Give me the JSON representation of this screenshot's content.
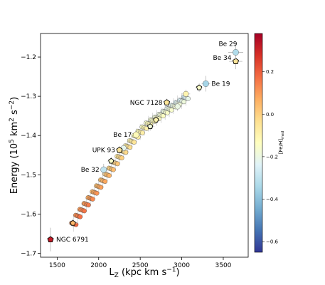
{
  "chart_data": {
    "type": "scatter",
    "xlabel": "L",
    "xlabel_sub": "Z",
    "xlabel_unit": "(kpc km s",
    "xlabel_exp": "−1",
    "xlabel_close": ")",
    "ylabel_main": "Energy (10",
    "ylabel_exp1": "5",
    "ylabel_mid": " km",
    "ylabel_exp2": "2",
    "ylabel_s": " s",
    "ylabel_exp3": "−2",
    "ylabel_close": ")",
    "xlim": [
      1300,
      3800
    ],
    "ylim": [
      -1.71,
      -1.14
    ],
    "xticks": [
      {
        "value": 1500,
        "label": "1500"
      },
      {
        "value": 2000,
        "label": "2000"
      },
      {
        "value": 2500,
        "label": "2500"
      },
      {
        "value": 3000,
        "label": "3000"
      },
      {
        "value": 3500,
        "label": "3500"
      }
    ],
    "yticks": [
      {
        "value": -1.2,
        "label": "−1.2"
      },
      {
        "value": -1.3,
        "label": "−1.3"
      },
      {
        "value": -1.4,
        "label": "−1.4"
      },
      {
        "value": -1.5,
        "label": "−1.5"
      },
      {
        "value": -1.6,
        "label": "−1.6"
      },
      {
        "value": -1.7,
        "label": "−1.7"
      }
    ],
    "colorbar": {
      "label_main": "[Fe/H]",
      "label_sub": "med",
      "range": [
        -0.65,
        0.38
      ],
      "colors": [
        "#313695",
        "#4575b4",
        "#74add1",
        "#abd9e9",
        "#e0f3f8",
        "#ffffbf",
        "#fee090",
        "#fdae61",
        "#f46d43",
        "#d73027",
        "#a50026"
      ],
      "ticks": [
        {
          "value": 0.2,
          "label": "0.2"
        },
        {
          "value": 0.0,
          "label": "0.0"
        },
        {
          "value": -0.2,
          "label": "−0.2"
        },
        {
          "value": -0.4,
          "label": "−0.4"
        },
        {
          "value": -0.6,
          "label": "−0.6"
        }
      ]
    },
    "clusters": [
      {
        "name": "NGC 6791",
        "x": 1420,
        "y": -1.665,
        "feh": 0.32,
        "marker": "pentagon",
        "xerr": 20,
        "yerr": 0.03
      },
      {
        "name": "Be 32",
        "x": 2060,
        "y": -1.487,
        "feh": -0.3,
        "marker": "circle",
        "xerr": 20,
        "yerr": 0.015
      },
      {
        "name": "UPK 93",
        "x": 2250,
        "y": -1.437,
        "feh": -0.05,
        "marker": "pentagon",
        "xerr": 30,
        "yerr": 0.01
      },
      {
        "name": "Be 17",
        "x": 2450,
        "y": -1.398,
        "feh": -0.12,
        "marker": "circle",
        "xerr": 20,
        "yerr": 0.01
      },
      {
        "name": "NGC 7128",
        "x": 2820,
        "y": -1.316,
        "feh": -0.05,
        "marker": "pentagon",
        "xerr": 30,
        "yerr": 0.01
      },
      {
        "name": "Be 19",
        "x": 3290,
        "y": -1.268,
        "feh": -0.35,
        "marker": "circle",
        "xerr": 50,
        "yerr": 0.02
      },
      {
        "name": "Be 34",
        "x": 3650,
        "y": -1.211,
        "feh": -0.05,
        "marker": "pentagon",
        "xerr": 80,
        "yerr": 0.02
      },
      {
        "name": "Be 29",
        "x": 3650,
        "y": -1.188,
        "feh": -0.33,
        "marker": "circle",
        "xerr": 90,
        "yerr": 0.02
      }
    ],
    "extra_highlighted": [
      {
        "x": 1690,
        "y": -1.623,
        "feh": 0.05,
        "marker": "pentagon"
      },
      {
        "x": 3050,
        "y": -1.294,
        "feh": -0.1,
        "marker": "circle"
      },
      {
        "x": 3210,
        "y": -1.278,
        "feh": -0.15,
        "marker": "pentagon"
      },
      {
        "x": 2950,
        "y": -1.326,
        "feh": -0.2,
        "marker": "circle"
      },
      {
        "x": 2690,
        "y": -1.36,
        "feh": -0.1,
        "marker": "pentagon"
      },
      {
        "x": 2620,
        "y": -1.377,
        "feh": -0.18,
        "marker": "pentagon"
      },
      {
        "x": 2300,
        "y": -1.432,
        "feh": -0.22,
        "marker": "circle"
      },
      {
        "x": 2150,
        "y": -1.465,
        "feh": -0.15,
        "marker": "pentagon"
      }
    ],
    "main_sequence": {
      "points": [
        [
          1700,
          -1.625
        ],
        [
          1750,
          -1.605
        ],
        [
          1800,
          -1.59
        ],
        [
          1850,
          -1.575
        ],
        [
          1900,
          -1.56
        ],
        [
          1950,
          -1.545
        ],
        [
          2000,
          -1.53
        ],
        [
          2050,
          -1.515
        ],
        [
          2100,
          -1.5
        ],
        [
          2150,
          -1.485
        ],
        [
          2200,
          -1.47
        ],
        [
          2250,
          -1.455
        ],
        [
          2300,
          -1.441
        ],
        [
          2350,
          -1.428
        ],
        [
          2400,
          -1.415
        ],
        [
          2450,
          -1.402
        ],
        [
          2500,
          -1.391
        ],
        [
          2550,
          -1.38
        ],
        [
          2600,
          -1.37
        ],
        [
          2650,
          -1.362
        ],
        [
          2700,
          -1.355
        ],
        [
          2750,
          -1.348
        ],
        [
          2800,
          -1.34
        ],
        [
          2850,
          -1.333
        ],
        [
          2900,
          -1.325
        ],
        [
          2950,
          -1.318
        ],
        [
          3000,
          -1.312
        ],
        [
          3050,
          -1.304
        ]
      ],
      "feh": [
        0.15,
        0.14,
        0.13,
        0.12,
        0.1,
        0.08,
        0.06,
        0.05,
        0.03,
        0.01,
        -0.01,
        -0.03,
        -0.05,
        -0.06,
        -0.08,
        -0.1,
        -0.11,
        -0.12,
        -0.13,
        -0.15,
        -0.16,
        -0.17,
        -0.18,
        -0.19,
        -0.2,
        -0.21,
        -0.22,
        -0.24
      ]
    }
  }
}
